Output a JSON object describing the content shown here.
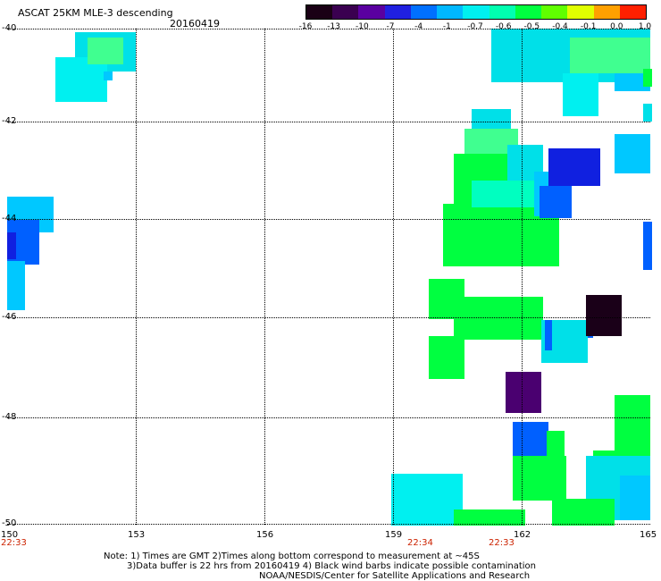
{
  "title": "ASCAT 25KM MLE-3 descending",
  "date": "20160419",
  "colorbar": {
    "labels": [
      "-16",
      "-13",
      "-10",
      "-7",
      "-4",
      "-1",
      "-0.7",
      "-0.6",
      "-0.5",
      "-0.4",
      "-0.1",
      "0.0",
      "1.0"
    ],
    "colors": [
      "#1a0015",
      "#3a0050",
      "#5a00a0",
      "#2020e0",
      "#0070ff",
      "#00b8ff",
      "#00f0f0",
      "#00ffb0",
      "#00ff40",
      "#60ff00",
      "#e0ff00",
      "#ffa000",
      "#ff2000"
    ]
  },
  "axes": {
    "lon_labels": [
      "150",
      "153",
      "156",
      "159",
      "162",
      "165"
    ],
    "lat_labels": [
      "-40",
      "-42",
      "-44",
      "-46",
      "-48",
      "-50"
    ]
  },
  "times": [
    "22:33",
    "22:34",
    "22:33"
  ],
  "notes": [
    "Note: 1) Times are GMT 2)Times along bottom correspond to measurement at ~45S",
    "3)Data buffer is 22 hrs from 20160419 4) Black wind barbs indicate possible contamination",
    "NOAA/NESDIS/Center for Satellite Applications and Research"
  ],
  "palette": {
    "cyan": "#00f0f0",
    "aqua": "#00e0e8",
    "skyblue": "#00c8ff",
    "blue": "#0060ff",
    "deepblue": "#1020e0",
    "green": "#00ff40",
    "lightgreen": "#40ff90",
    "teal": "#00ffc0",
    "purple": "#4a0070",
    "black": "#1a0018"
  }
}
